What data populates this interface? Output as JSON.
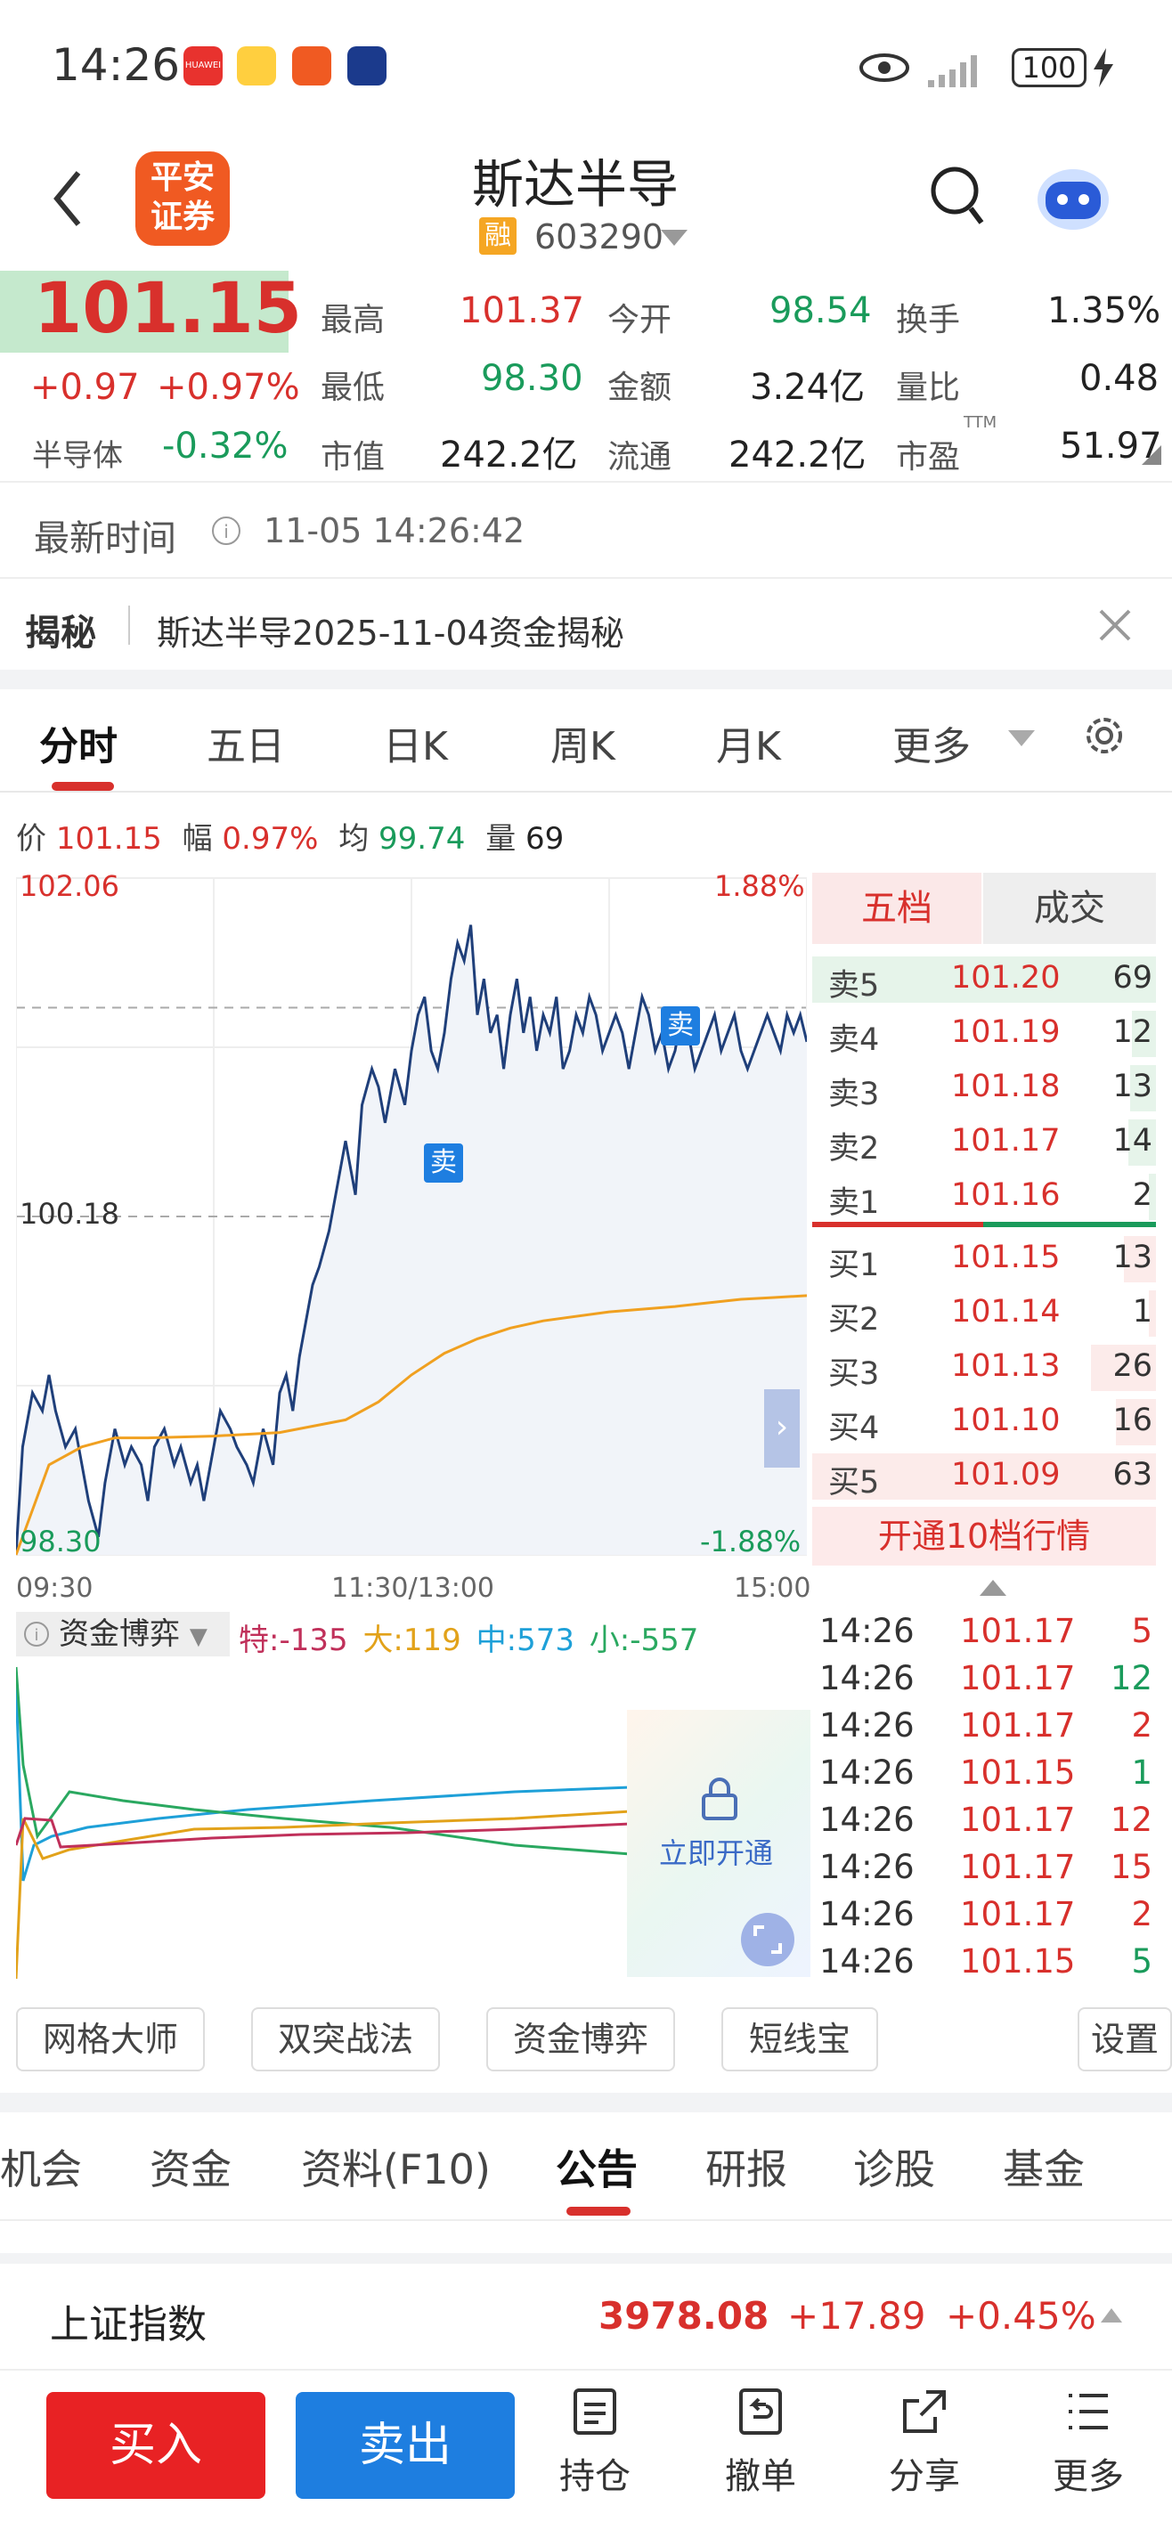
{
  "status_bar": {
    "time": "14:26",
    "battery": "100"
  },
  "header": {
    "stock_name": "斯达半导",
    "badge": "融",
    "code": "603290",
    "logo_line1": "平安",
    "logo_line2": "证券"
  },
  "quote": {
    "price": "101.15",
    "change": "+0.97",
    "change_pct": "+0.97%",
    "sector_name": "半导体",
    "sector_pct": "-0.32%",
    "high_label": "最高",
    "high": "101.37",
    "low_label": "最低",
    "low": "98.30",
    "mcap_label": "市值",
    "mcap": "242.2亿",
    "open_label": "今开",
    "open": "98.54",
    "amount_label": "金额",
    "amount": "3.24亿",
    "float_label": "流通",
    "float": "242.2亿",
    "turnover_label": "换手",
    "turnover": "1.35%",
    "vol_ratio_label": "量比",
    "vol_ratio": "0.48",
    "pe_label": "市盈",
    "pe_sup": "TTM",
    "pe": "51.97"
  },
  "update": {
    "label": "最新时间",
    "time": "11-05 14:26:42"
  },
  "reveal": {
    "tag": "揭秘",
    "text": "斯达半导2025-11-04资金揭秘"
  },
  "chart_tabs": [
    "分时",
    "五日",
    "日K",
    "周K",
    "月K",
    "更多"
  ],
  "info_line": {
    "price_label": "价",
    "price": "101.15",
    "amp_label": "幅",
    "amp": "0.97%",
    "avg_label": "均",
    "avg": "99.74",
    "vol_label": "量",
    "vol": "69"
  },
  "chart_data": {
    "type": "line",
    "title": "",
    "x_ticks": [
      "09:30",
      "11:30/13:00",
      "15:00"
    ],
    "y_top": "102.06",
    "y_mid": "100.18",
    "y_bottom": "98.30",
    "pct_top": "1.88%",
    "pct_bottom": "-1.88%",
    "trade_markers": [
      "卖",
      "卖"
    ],
    "series": [
      {
        "color": "#1f3f7a",
        "x": [
          0,
          2,
          5,
          8,
          10,
          12,
          15,
          18,
          20,
          22,
          25,
          27,
          30,
          33,
          35,
          38,
          40,
          42,
          45,
          48,
          50,
          53,
          55,
          57,
          60,
          62,
          65,
          67,
          70,
          72,
          75,
          78,
          80,
          82,
          84,
          86,
          88,
          90,
          92,
          95,
          98,
          100,
          103,
          105,
          108,
          110,
          112,
          115,
          118,
          120,
          122,
          124,
          126,
          128,
          130,
          132,
          134,
          136,
          138,
          140,
          142,
          144,
          146,
          148,
          150,
          152,
          154,
          156,
          158,
          160,
          162,
          164,
          166,
          168,
          170,
          172,
          174,
          176,
          178,
          180,
          182,
          184,
          186,
          188,
          190,
          192,
          194,
          196,
          198,
          200,
          202,
          204,
          206,
          208,
          210,
          212,
          214,
          216,
          218,
          220,
          222,
          224,
          226,
          228,
          230,
          232,
          234,
          236,
          238,
          240
        ],
        "values": [
          98.3,
          98.9,
          99.2,
          99.1,
          99.3,
          99.1,
          98.9,
          99.0,
          98.8,
          98.6,
          98.4,
          98.7,
          99.0,
          98.8,
          98.9,
          98.8,
          98.6,
          98.9,
          99.0,
          98.8,
          98.9,
          98.7,
          98.8,
          98.6,
          98.9,
          99.1,
          99.0,
          98.9,
          98.8,
          98.7,
          99.0,
          98.8,
          99.2,
          99.3,
          99.1,
          99.4,
          99.6,
          99.8,
          99.9,
          100.1,
          100.4,
          100.6,
          100.3,
          100.8,
          101.0,
          100.9,
          100.7,
          101.0,
          100.8,
          101.1,
          101.3,
          101.4,
          101.1,
          101.0,
          101.2,
          101.5,
          101.7,
          101.6,
          101.8,
          101.3,
          101.5,
          101.2,
          101.3,
          101.0,
          101.3,
          101.5,
          101.2,
          101.4,
          101.1,
          101.3,
          101.2,
          101.4,
          101.0,
          101.1,
          101.3,
          101.2,
          101.4,
          101.3,
          101.1,
          101.2,
          101.3,
          101.2,
          101.0,
          101.2,
          101.4,
          101.3,
          101.1,
          101.2,
          101.0,
          101.1,
          101.3,
          101.2,
          101.0,
          101.1,
          101.2,
          101.3,
          101.1,
          101.2,
          101.3,
          101.1,
          101.0,
          101.1,
          101.2,
          101.3,
          101.2,
          101.1,
          101.3,
          101.2,
          101.3,
          101.15
        ]
      },
      {
        "color": "#f0a020",
        "x": [
          0,
          10,
          20,
          30,
          40,
          60,
          80,
          100,
          110,
          120,
          130,
          140,
          150,
          160,
          180,
          200,
          210,
          220,
          230,
          240
        ],
        "values": [
          98.3,
          98.8,
          98.9,
          98.95,
          98.95,
          98.96,
          98.98,
          99.05,
          99.15,
          99.3,
          99.42,
          99.5,
          99.56,
          99.6,
          99.65,
          99.68,
          99.7,
          99.72,
          99.73,
          99.74
        ]
      }
    ]
  },
  "order_book": {
    "tab_active": "五档",
    "tab_other": "成交",
    "asks": [
      {
        "label": "卖5",
        "price": "101.20",
        "vol": "69"
      },
      {
        "label": "卖4",
        "price": "101.19",
        "vol": "12"
      },
      {
        "label": "卖3",
        "price": "101.18",
        "vol": "13"
      },
      {
        "label": "卖2",
        "price": "101.17",
        "vol": "14"
      },
      {
        "label": "卖1",
        "price": "101.16",
        "vol": "2"
      }
    ],
    "bids": [
      {
        "label": "买1",
        "price": "101.15",
        "vol": "13"
      },
      {
        "label": "买2",
        "price": "101.14",
        "vol": "1"
      },
      {
        "label": "买3",
        "price": "101.13",
        "vol": "26"
      },
      {
        "label": "买4",
        "price": "101.10",
        "vol": "16"
      },
      {
        "label": "买5",
        "price": "101.09",
        "vol": "63"
      }
    ],
    "upgrade": "开通10档行情"
  },
  "ticks": [
    {
      "time": "14:26",
      "price": "101.17",
      "vol": "5",
      "dir": "r"
    },
    {
      "time": "14:26",
      "price": "101.17",
      "vol": "12",
      "dir": "g"
    },
    {
      "time": "14:26",
      "price": "101.17",
      "vol": "2",
      "dir": "r"
    },
    {
      "time": "14:26",
      "price": "101.15",
      "vol": "1",
      "dir": "g"
    },
    {
      "time": "14:26",
      "price": "101.17",
      "vol": "12",
      "dir": "r"
    },
    {
      "time": "14:26",
      "price": "101.17",
      "vol": "15",
      "dir": "r"
    },
    {
      "time": "14:26",
      "price": "101.17",
      "vol": "2",
      "dir": "r"
    },
    {
      "time": "14:26",
      "price": "101.15",
      "vol": "5",
      "dir": "g"
    }
  ],
  "fund_game": {
    "title": "资金博弈",
    "te": "特:-135",
    "da": "大:119",
    "zhong": "中:573",
    "xiao": "小:-557",
    "unlock": "立即开通"
  },
  "tools": [
    "网格大师",
    "双突战法",
    "资金博弈",
    "短线宝",
    "设置"
  ],
  "f10_tabs": [
    "机会",
    "资金",
    "资料(F10)",
    "公告",
    "研报",
    "诊股",
    "基金"
  ],
  "index": {
    "name": "上证指数",
    "value": "3978.08",
    "change": "+17.89",
    "pct": "+0.45%"
  },
  "bottom_nav": {
    "buy": "买入",
    "sell": "卖出",
    "items": [
      "持仓",
      "撤单",
      "分享",
      "更多"
    ]
  },
  "colors": {
    "red": "#d8302c",
    "green": "#1a9b5b",
    "blue": "#1e7ee0",
    "orange": "#f07030"
  }
}
